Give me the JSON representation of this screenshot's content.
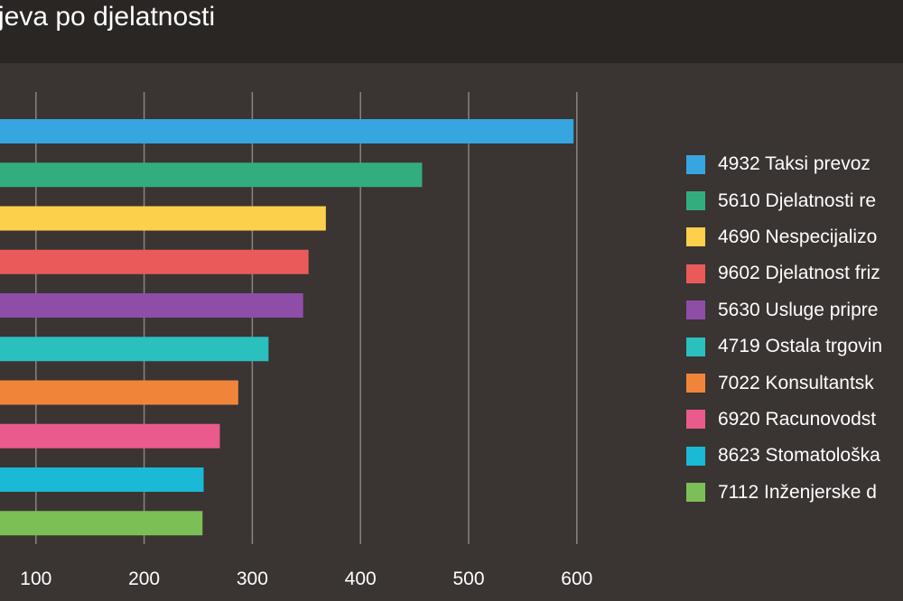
{
  "chart_data": {
    "type": "bar",
    "orientation": "horizontal",
    "title": "jeva po djelatnosti",
    "xlim": [
      0,
      600
    ],
    "x_ticks": [
      100,
      200,
      300,
      400,
      500,
      600
    ],
    "grid": true,
    "legend_position": "right",
    "categories": [
      "4932 Taksi prevoz",
      "5610 Djelatnosti re",
      "4690 Nespecijalizo",
      "9602 Djelatnost friz",
      "5630 Usluge pripre",
      "4719 Ostala trgovin",
      "7022 Konsultantsk",
      "6920 Racunovodst",
      "8623 Stomatološka",
      "7112 Inženjerske d"
    ],
    "values": [
      597,
      457,
      368,
      352,
      347,
      315,
      287,
      270,
      255,
      254
    ],
    "colors": [
      "#37a5e0",
      "#33ad7e",
      "#fcd04a",
      "#ea5a5a",
      "#8e4ea8",
      "#29c0be",
      "#f0853a",
      "#ea5a8d",
      "#1ab9d6",
      "#7cbf56"
    ]
  }
}
